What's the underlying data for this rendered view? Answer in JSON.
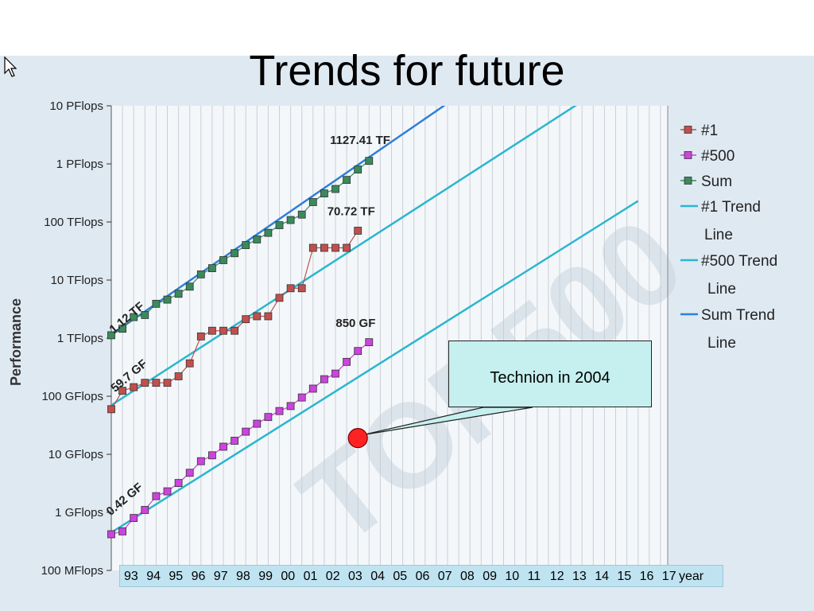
{
  "slide": {
    "title": "Trends for future",
    "callout": "Technion  in 2004",
    "year_axis_suffix": "year"
  },
  "chart_data": {
    "type": "line",
    "y_scale": "log",
    "ylabel": "Performance",
    "ylim_flops": [
      100000000.0,
      1e+16
    ],
    "y_ticks": [
      {
        "label": "10 PFlops",
        "value": 1e+16
      },
      {
        "label": "1 PFlops",
        "value": 1000000000000000.0
      },
      {
        "label": "100 TFlops",
        "value": 100000000000000.0
      },
      {
        "label": "10 TFlops",
        "value": 10000000000000.0
      },
      {
        "label": "1 TFlops",
        "value": 1000000000000.0
      },
      {
        "label": "100 GFlops",
        "value": 100000000000.0
      },
      {
        "label": "10 GFlops",
        "value": 10000000000.0
      },
      {
        "label": "1 GFlops",
        "value": 1000000000.0
      },
      {
        "label": "100 MFlops",
        "value": 100000000.0
      }
    ],
    "year_ticks": [
      "93",
      "94",
      "95",
      "96",
      "97",
      "98",
      "99",
      "00",
      "01",
      "02",
      "03",
      "04",
      "05",
      "06",
      "07",
      "08",
      "09",
      "10",
      "11",
      "12",
      "13",
      "14",
      "15",
      "16",
      "17"
    ],
    "x": [
      1993.5,
      1994.0,
      1994.5,
      1995.0,
      1995.5,
      1996.0,
      1996.5,
      1997.0,
      1997.5,
      1998.0,
      1998.5,
      1999.0,
      1999.5,
      2000.0,
      2000.5,
      2001.0,
      2001.5,
      2002.0,
      2002.5,
      2003.0,
      2003.5,
      2004.0,
      2004.5
    ],
    "series": [
      {
        "name": "#1",
        "color": "#c0504d",
        "values_flops": [
          59700000000.0,
          124000000000.0,
          143000000000.0,
          170000000000.0,
          170000000000.0,
          170000000000.0,
          220000000000.0,
          368000000000.0,
          1070000000000.0,
          1340000000000.0,
          1340000000000.0,
          1340000000000.0,
          2120000000000.0,
          2380000000000.0,
          2380000000000.0,
          4940000000000.0,
          7230000000000.0,
          7230000000000.0,
          35860000000000.0,
          35860000000000.0,
          35860000000000.0,
          35860000000000.0,
          70720000000000.0
        ]
      },
      {
        "name": "#500",
        "color": "#cc44dd",
        "values_flops": [
          420000000.0,
          470000000.0,
          800000000.0,
          1100000000.0,
          1900000000.0,
          2300000000.0,
          3200000000.0,
          4800000000.0,
          7600000000.0,
          9600000000.0,
          13500000000.0,
          17100000000.0,
          24500000000.0,
          33600000000.0,
          43800000000.0,
          55500000000.0,
          67600000000.0,
          95000000000.0,
          135000000000.0,
          196000000000.0,
          245000000000.0,
          390000000000.0,
          600000000000.0,
          850000000000.0
        ]
      },
      {
        "name": "Sum",
        "color": "#3a8a5c",
        "values_flops": [
          1120000000000.0,
          1450000000000.0,
          2300000000000.0,
          2500000000000.0,
          3900000000000.0,
          4600000000000.0,
          5800000000000.0,
          7700000000000.0,
          12500000000000.0,
          16000000000000.0,
          22000000000000.0,
          29000000000000.0,
          40000000000000.0,
          50000000000000.0,
          65000000000000.0,
          88000000000000.0,
          108000000000000.0,
          134000000000000.0,
          220000000000000.0,
          310000000000000.0,
          370000000000000.0,
          530000000000000.0,
          800000000000000.0,
          1127410000000000.0
        ]
      }
    ],
    "x_500": [
      1993.5,
      1994.0,
      1994.5,
      1995.0,
      1995.5,
      1996.0,
      1996.5,
      1997.0,
      1997.5,
      1998.0,
      1998.5,
      1999.0,
      1999.5,
      2000.0,
      2000.5,
      2001.0,
      2001.5,
      2002.0,
      2002.5,
      2003.0,
      2003.5,
      2004.0,
      2004.5,
      2005.0
    ],
    "x_sum": [
      1993.5,
      1994.0,
      1994.5,
      1995.0,
      1995.5,
      1996.0,
      1996.5,
      1997.0,
      1997.5,
      1998.0,
      1998.5,
      1999.0,
      1999.5,
      2000.0,
      2000.5,
      2001.0,
      2001.5,
      2002.0,
      2002.5,
      2003.0,
      2003.5,
      2004.0,
      2004.5,
      2005.0
    ],
    "trend_lines": [
      {
        "name": "#1 Trend Line",
        "color": "#2bb6cf",
        "from": [
          1993.5,
          70000000000.0
        ],
        "to": [
          2017.0,
          5e+16
        ]
      },
      {
        "name": "#500 Trend Line",
        "color": "#2bb6cf",
        "from": [
          1993.5,
          450000000.0
        ],
        "to": [
          2017.0,
          230000000000000.0
        ]
      },
      {
        "name": "Sum Trend Line",
        "color": "#2f7fd8",
        "from": [
          1993.5,
          1150000000000.0
        ],
        "to": [
          2017.0,
          2e+18
        ]
      }
    ],
    "annotations": [
      {
        "text": "1127.41 TF",
        "x": 2004.6,
        "y": 2200000000000000.0,
        "rotate": 0
      },
      {
        "text": "70.72 TF",
        "x": 2004.2,
        "y": 130000000000000.0,
        "rotate": 0
      },
      {
        "text": "850 GF",
        "x": 2004.4,
        "y": 1550000000000.0,
        "rotate": 0
      },
      {
        "text": "1.12 TF",
        "x": 1994.3,
        "y": 2000000000000.0,
        "rotate": -40
      },
      {
        "text": "59.7 GF",
        "x": 1994.4,
        "y": 200000000000.0,
        "rotate": -40
      },
      {
        "text": "0.42 GF",
        "x": 1994.2,
        "y": 1500000000.0,
        "rotate": -40
      }
    ],
    "legend": {
      "position": "right",
      "items": [
        {
          "label": "#1",
          "kind": "marker",
          "color": "#c0504d"
        },
        {
          "label": "#500",
          "kind": "marker",
          "color": "#cc44dd"
        },
        {
          "label": "Sum",
          "kind": "marker",
          "color": "#3a8a5c"
        },
        {
          "label": "#1 Trend",
          "label2": "Line",
          "kind": "line",
          "color": "#2bb6cf"
        },
        {
          "label": "#500 Trend",
          "label2": "Line",
          "kind": "line",
          "color": "#2bb6cf"
        },
        {
          "label": "Sum Trend",
          "label2": "Line",
          "kind": "line",
          "color": "#2f7fd8"
        }
      ]
    },
    "highlight_point": {
      "x": 2004.5,
      "y": 19000000000.0,
      "color": "#ff2222"
    },
    "watermark": "TOP500",
    "grid": true
  },
  "icons": {
    "cursor": "mouse-pointer-icon"
  }
}
